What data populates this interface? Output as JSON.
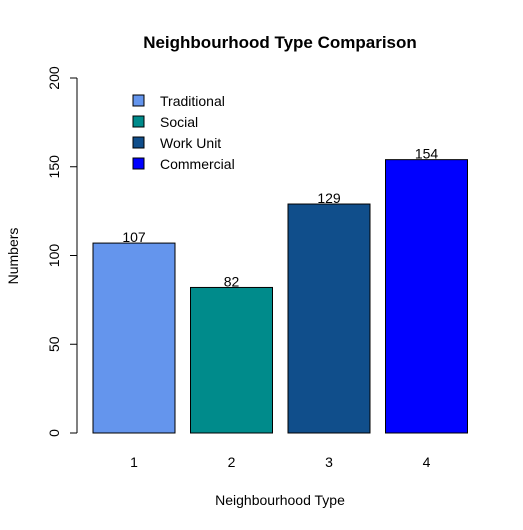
{
  "chart_data": {
    "type": "bar",
    "title": "Neighbourhood Type Comparison",
    "xlabel": "Neighbourhood Type",
    "ylabel": "Numbers",
    "categories": [
      "1",
      "2",
      "3",
      "4"
    ],
    "values": [
      107,
      82,
      129,
      154
    ],
    "data_labels": [
      "107",
      "82",
      "129",
      "154"
    ],
    "bar_colors": [
      "#6495ED",
      "#008B8B",
      "#104E8B",
      "#0000FF"
    ],
    "ylim": [
      0,
      200
    ],
    "yticks": [
      0,
      50,
      100,
      150,
      200
    ],
    "ytick_labels": [
      "0",
      "50",
      "100",
      "150",
      "200"
    ],
    "grid": false,
    "legend": {
      "position": "top-left",
      "entries": [
        {
          "label": "Traditional",
          "color": "#6495ED"
        },
        {
          "label": "Social",
          "color": "#008B8B"
        },
        {
          "label": "Work Unit",
          "color": "#104E8B"
        },
        {
          "label": "Commercial",
          "color": "#0000FF"
        }
      ]
    }
  }
}
